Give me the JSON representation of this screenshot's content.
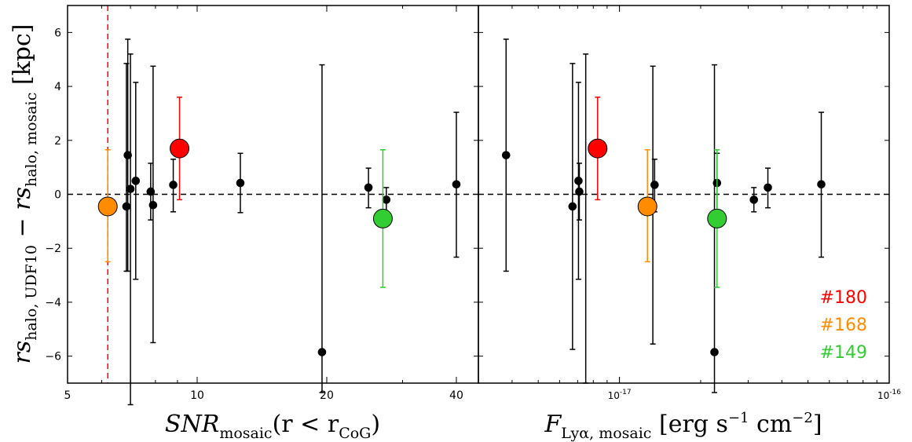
{
  "chart_data": [
    {
      "type": "scatter",
      "xlabel": "SNR_mosaic(r < r_CoG)",
      "ylabel": "rs_halo,UDF10 − rs_halo,mosaic [kpc]",
      "xscale": "log",
      "xlim": [
        5,
        45
      ],
      "ylim": [
        -7,
        7
      ],
      "xticks": [
        5,
        10,
        20,
        40
      ],
      "xtick_labels": [
        "5",
        "10",
        "20",
        "40"
      ],
      "yticks": [
        -6,
        -4,
        -2,
        0,
        2,
        4,
        6
      ],
      "ytick_labels": [
        "−6",
        "−4",
        "−2",
        "0",
        "2",
        "4",
        "6"
      ],
      "reference_hline": 0,
      "reference_vline": 6.2,
      "series": [
        {
          "color": "#000000",
          "points": [
            {
              "x": 6.9,
              "y": 1.45,
              "err_lo": 4.3,
              "err_hi": 4.3
            },
            {
              "x": 6.85,
              "y": -0.45,
              "err_lo": 2.4,
              "err_hi": 5.3
            },
            {
              "x": 7.0,
              "y": 0.2,
              "err_lo": 8.0,
              "err_hi": 5.0
            },
            {
              "x": 7.2,
              "y": 0.5,
              "err_lo": 3.65,
              "err_hi": 3.65
            },
            {
              "x": 7.8,
              "y": 0.1,
              "err_lo": 1.05,
              "err_hi": 1.05
            },
            {
              "x": 7.9,
              "y": -0.4,
              "err_lo": 5.1,
              "err_hi": 5.15
            },
            {
              "x": 8.8,
              "y": 0.35,
              "err_lo": 1.0,
              "err_hi": 0.95
            },
            {
              "x": 12.6,
              "y": 0.42,
              "err_lo": 1.1,
              "err_hi": 1.1
            },
            {
              "x": 19.5,
              "y": -5.85,
              "err_lo": 1.5,
              "err_hi": 10.65
            },
            {
              "x": 25.0,
              "y": 0.25,
              "err_lo": 0.75,
              "err_hi": 0.72
            },
            {
              "x": 27.5,
              "y": -0.2,
              "err_lo": 0.45,
              "err_hi": 0.45
            },
            {
              "x": 40.0,
              "y": 0.37,
              "err_lo": 2.7,
              "err_hi": 2.67
            }
          ]
        },
        {
          "name": "#180",
          "color": "#ff0000",
          "points": [
            {
              "x": 9.1,
              "y": 1.7,
              "err_lo": 1.9,
              "err_hi": 1.9
            }
          ]
        },
        {
          "name": "#168",
          "color": "#ff8c00",
          "points": [
            {
              "x": 6.2,
              "y": -0.45,
              "err_lo": 2.05,
              "err_hi": 2.1
            }
          ]
        },
        {
          "name": "#149",
          "color": "#32cd32",
          "points": [
            {
              "x": 27.0,
              "y": -0.9,
              "err_lo": 2.55,
              "err_hi": 2.55
            }
          ]
        }
      ]
    },
    {
      "type": "scatter",
      "xlabel": "F_Lyα,mosaic [erg s⁻¹ cm⁻²]",
      "xscale": "log",
      "xlim": [
        3e-18,
        1e-16
      ],
      "ylim": [
        -7,
        7
      ],
      "xticks": [
        1e-17,
        1e-16
      ],
      "xtick_labels": [
        "10⁻¹⁷",
        "10⁻¹⁶"
      ],
      "reference_hline": 0,
      "legend_placement": "bottom-right",
      "legend": [
        {
          "label": "#180",
          "color": "#ff0000"
        },
        {
          "label": "#168",
          "color": "#ff8c00"
        },
        {
          "label": "#149",
          "color": "#32cd32"
        }
      ],
      "series": [
        {
          "color": "#000000",
          "points": [
            {
              "x": 3.8e-18,
              "y": 1.45,
              "err_lo": 4.3,
              "err_hi": 4.3
            },
            {
              "x": 6.7e-18,
              "y": -0.45,
              "err_lo": 5.3,
              "err_hi": 5.3
            },
            {
              "x": 7.05e-18,
              "y": 0.5,
              "err_lo": 3.65,
              "err_hi": 3.65
            },
            {
              "x": 7.1e-18,
              "y": 0.1,
              "err_lo": 1.05,
              "err_hi": 1.05
            },
            {
              "x": 7.5e-18,
              "y": -7.0,
              "err_lo": 0,
              "err_hi": 12.2
            },
            {
              "x": 1.33e-17,
              "y": -0.4,
              "err_lo": 5.15,
              "err_hi": 5.15
            },
            {
              "x": 1.35e-17,
              "y": 0.35,
              "err_lo": 1.0,
              "err_hi": 0.95
            },
            {
              "x": 2.25e-17,
              "y": -5.85,
              "err_lo": 1.5,
              "err_hi": 10.65
            },
            {
              "x": 2.3e-17,
              "y": 0.42,
              "err_lo": 1.1,
              "err_hi": 1.1
            },
            {
              "x": 3.15e-17,
              "y": -0.2,
              "err_lo": 0.45,
              "err_hi": 0.45
            },
            {
              "x": 3.55e-17,
              "y": 0.25,
              "err_lo": 0.75,
              "err_hi": 0.72
            },
            {
              "x": 5.6e-17,
              "y": 0.37,
              "err_lo": 2.7,
              "err_hi": 2.67
            }
          ]
        },
        {
          "name": "#180",
          "color": "#ff0000",
          "points": [
            {
              "x": 8.3e-18,
              "y": 1.7,
              "err_lo": 1.9,
              "err_hi": 1.9
            }
          ]
        },
        {
          "name": "#168",
          "color": "#ff8c00",
          "points": [
            {
              "x": 1.27e-17,
              "y": -0.45,
              "err_lo": 2.05,
              "err_hi": 2.1
            }
          ]
        },
        {
          "name": "#149",
          "color": "#32cd32",
          "points": [
            {
              "x": 2.3e-17,
              "y": -0.9,
              "err_lo": 2.55,
              "err_hi": 2.55
            }
          ]
        }
      ]
    }
  ]
}
